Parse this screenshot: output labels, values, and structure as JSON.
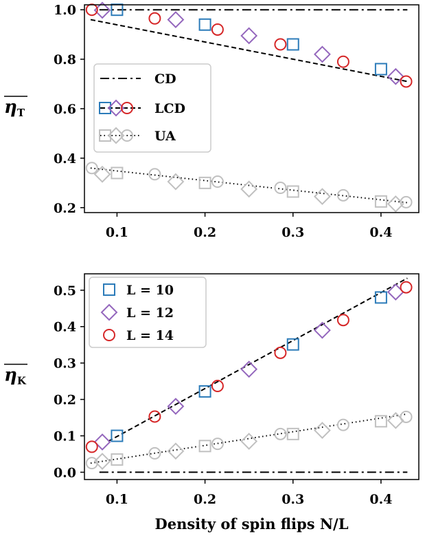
{
  "chart_data": [
    {
      "type": "line",
      "id": "top",
      "ylabel": "η",
      "ylabel_sub": "T",
      "xlim": [
        0.063,
        0.443
      ],
      "ylim": [
        0.18,
        1.02
      ],
      "xticks": [
        0.1,
        0.2,
        0.3,
        0.4
      ],
      "xtick_labels": [
        "0.1",
        "0.2",
        "0.3",
        "0.4"
      ],
      "yticks": [
        0.2,
        0.4,
        0.6,
        0.8,
        1.0
      ],
      "ytick_labels": [
        "0.2",
        "0.4",
        "0.6",
        "0.8",
        "1.0"
      ],
      "grid": false,
      "legend_position": "center-left",
      "legend": [
        {
          "label": "CD",
          "line": "dashdot",
          "markers": []
        },
        {
          "label": "LCD",
          "line": "dashed",
          "markers": [
            "square",
            "diamond",
            "circle"
          ],
          "colors": [
            "#2b7bb9",
            "#9467bd",
            "#d62728"
          ]
        },
        {
          "label": "UA",
          "line": "dotted",
          "markers": [
            "square",
            "diamond",
            "circle"
          ],
          "colors": [
            "#c0c0c0",
            "#c0c0c0",
            "#c0c0c0"
          ]
        }
      ],
      "lines": [
        {
          "style": "dashdot",
          "x": [
            0.08,
            0.43
          ],
          "y": [
            1.0,
            1.0
          ]
        },
        {
          "style": "dashed",
          "x": [
            0.07,
            0.43
          ],
          "y": [
            0.96,
            0.71
          ]
        },
        {
          "style": "dotted",
          "x": [
            0.07,
            0.43
          ],
          "y": [
            0.36,
            0.22
          ]
        }
      ],
      "series": [
        {
          "group": "LCD",
          "name": "L = 10",
          "marker": "square",
          "color": "#2b7bb9",
          "x": [
            0.1,
            0.2,
            0.3,
            0.4
          ],
          "y": [
            1.0,
            0.94,
            0.86,
            0.76
          ]
        },
        {
          "group": "LCD",
          "name": "L = 12",
          "marker": "diamond",
          "color": "#9467bd",
          "x": [
            0.0833,
            0.1667,
            0.25,
            0.3333,
            0.4167
          ],
          "y": [
            0.998,
            0.96,
            0.895,
            0.82,
            0.73
          ]
        },
        {
          "group": "LCD",
          "name": "L = 14",
          "marker": "circle",
          "color": "#d62728",
          "x": [
            0.0714,
            0.1429,
            0.2143,
            0.2857,
            0.3571,
            0.4286
          ],
          "y": [
            1.0,
            0.965,
            0.92,
            0.86,
            0.79,
            0.71
          ]
        },
        {
          "group": "UA",
          "name": "L = 10",
          "marker": "square",
          "color": "#c0c0c0",
          "x": [
            0.1,
            0.2,
            0.3,
            0.4
          ],
          "y": [
            0.34,
            0.3,
            0.265,
            0.225
          ]
        },
        {
          "group": "UA",
          "name": "L = 12",
          "marker": "diamond",
          "color": "#c0c0c0",
          "x": [
            0.0833,
            0.1667,
            0.25,
            0.3333,
            0.4167
          ],
          "y": [
            0.335,
            0.305,
            0.275,
            0.245,
            0.215
          ]
        },
        {
          "group": "UA",
          "name": "L = 14",
          "marker": "circle",
          "color": "#c0c0c0",
          "x": [
            0.0714,
            0.1429,
            0.2143,
            0.2857,
            0.3571,
            0.4286
          ],
          "y": [
            0.36,
            0.335,
            0.305,
            0.28,
            0.25,
            0.222
          ]
        }
      ]
    },
    {
      "type": "line",
      "id": "bottom",
      "ylabel": "η",
      "ylabel_sub": "K",
      "xlabel": "Density of spin flips N/L",
      "xlim": [
        0.063,
        0.443
      ],
      "ylim": [
        -0.02,
        0.545
      ],
      "xticks": [
        0.1,
        0.2,
        0.3,
        0.4
      ],
      "xtick_labels": [
        "0.1",
        "0.2",
        "0.3",
        "0.4"
      ],
      "yticks": [
        0.0,
        0.1,
        0.2,
        0.3,
        0.4,
        0.5
      ],
      "ytick_labels": [
        "0.0",
        "0.1",
        "0.2",
        "0.3",
        "0.4",
        "0.5"
      ],
      "grid": false,
      "legend_position": "top-left",
      "legend": [
        {
          "label": "L = 10",
          "marker": "square",
          "color": "#2b7bb9"
        },
        {
          "label": "L = 12",
          "marker": "diamond",
          "color": "#9467bd"
        },
        {
          "label": "L = 14",
          "marker": "circle",
          "color": "#d62728"
        }
      ],
      "lines": [
        {
          "style": "dashdot",
          "x": [
            0.08,
            0.43
          ],
          "y": [
            0.0,
            0.0
          ]
        },
        {
          "style": "dashed",
          "x": [
            0.09,
            0.43
          ],
          "y": [
            0.085,
            0.533
          ]
        },
        {
          "style": "dotted",
          "x": [
            0.07,
            0.43
          ],
          "y": [
            0.025,
            0.16
          ]
        }
      ],
      "series": [
        {
          "group": "LCD",
          "name": "L = 10",
          "marker": "square",
          "color": "#2b7bb9",
          "x": [
            0.1,
            0.2,
            0.3,
            0.4
          ],
          "y": [
            0.1,
            0.222,
            0.351,
            0.48
          ]
        },
        {
          "group": "LCD",
          "name": "L = 12",
          "marker": "diamond",
          "color": "#9467bd",
          "x": [
            0.0833,
            0.1667,
            0.25,
            0.3333,
            0.4167
          ],
          "y": [
            0.083,
            0.181,
            0.283,
            0.39,
            0.495
          ]
        },
        {
          "group": "LCD",
          "name": "L = 14",
          "marker": "circle",
          "color": "#d62728",
          "x": [
            0.0714,
            0.1429,
            0.2143,
            0.2857,
            0.3571,
            0.4286
          ],
          "y": [
            0.07,
            0.153,
            0.237,
            0.328,
            0.418,
            0.508
          ]
        },
        {
          "group": "UA",
          "name": "L = 10",
          "marker": "square",
          "color": "#c0c0c0",
          "x": [
            0.1,
            0.2,
            0.3,
            0.4
          ],
          "y": [
            0.035,
            0.072,
            0.105,
            0.14
          ]
        },
        {
          "group": "UA",
          "name": "L = 12",
          "marker": "diamond",
          "color": "#c0c0c0",
          "x": [
            0.0833,
            0.1667,
            0.25,
            0.3333,
            0.4167
          ],
          "y": [
            0.03,
            0.058,
            0.085,
            0.115,
            0.142
          ]
        },
        {
          "group": "UA",
          "name": "L = 14",
          "marker": "circle",
          "color": "#c0c0c0",
          "x": [
            0.0714,
            0.1429,
            0.2143,
            0.2857,
            0.3571,
            0.4286
          ],
          "y": [
            0.025,
            0.052,
            0.078,
            0.105,
            0.13,
            0.152
          ]
        }
      ]
    }
  ]
}
